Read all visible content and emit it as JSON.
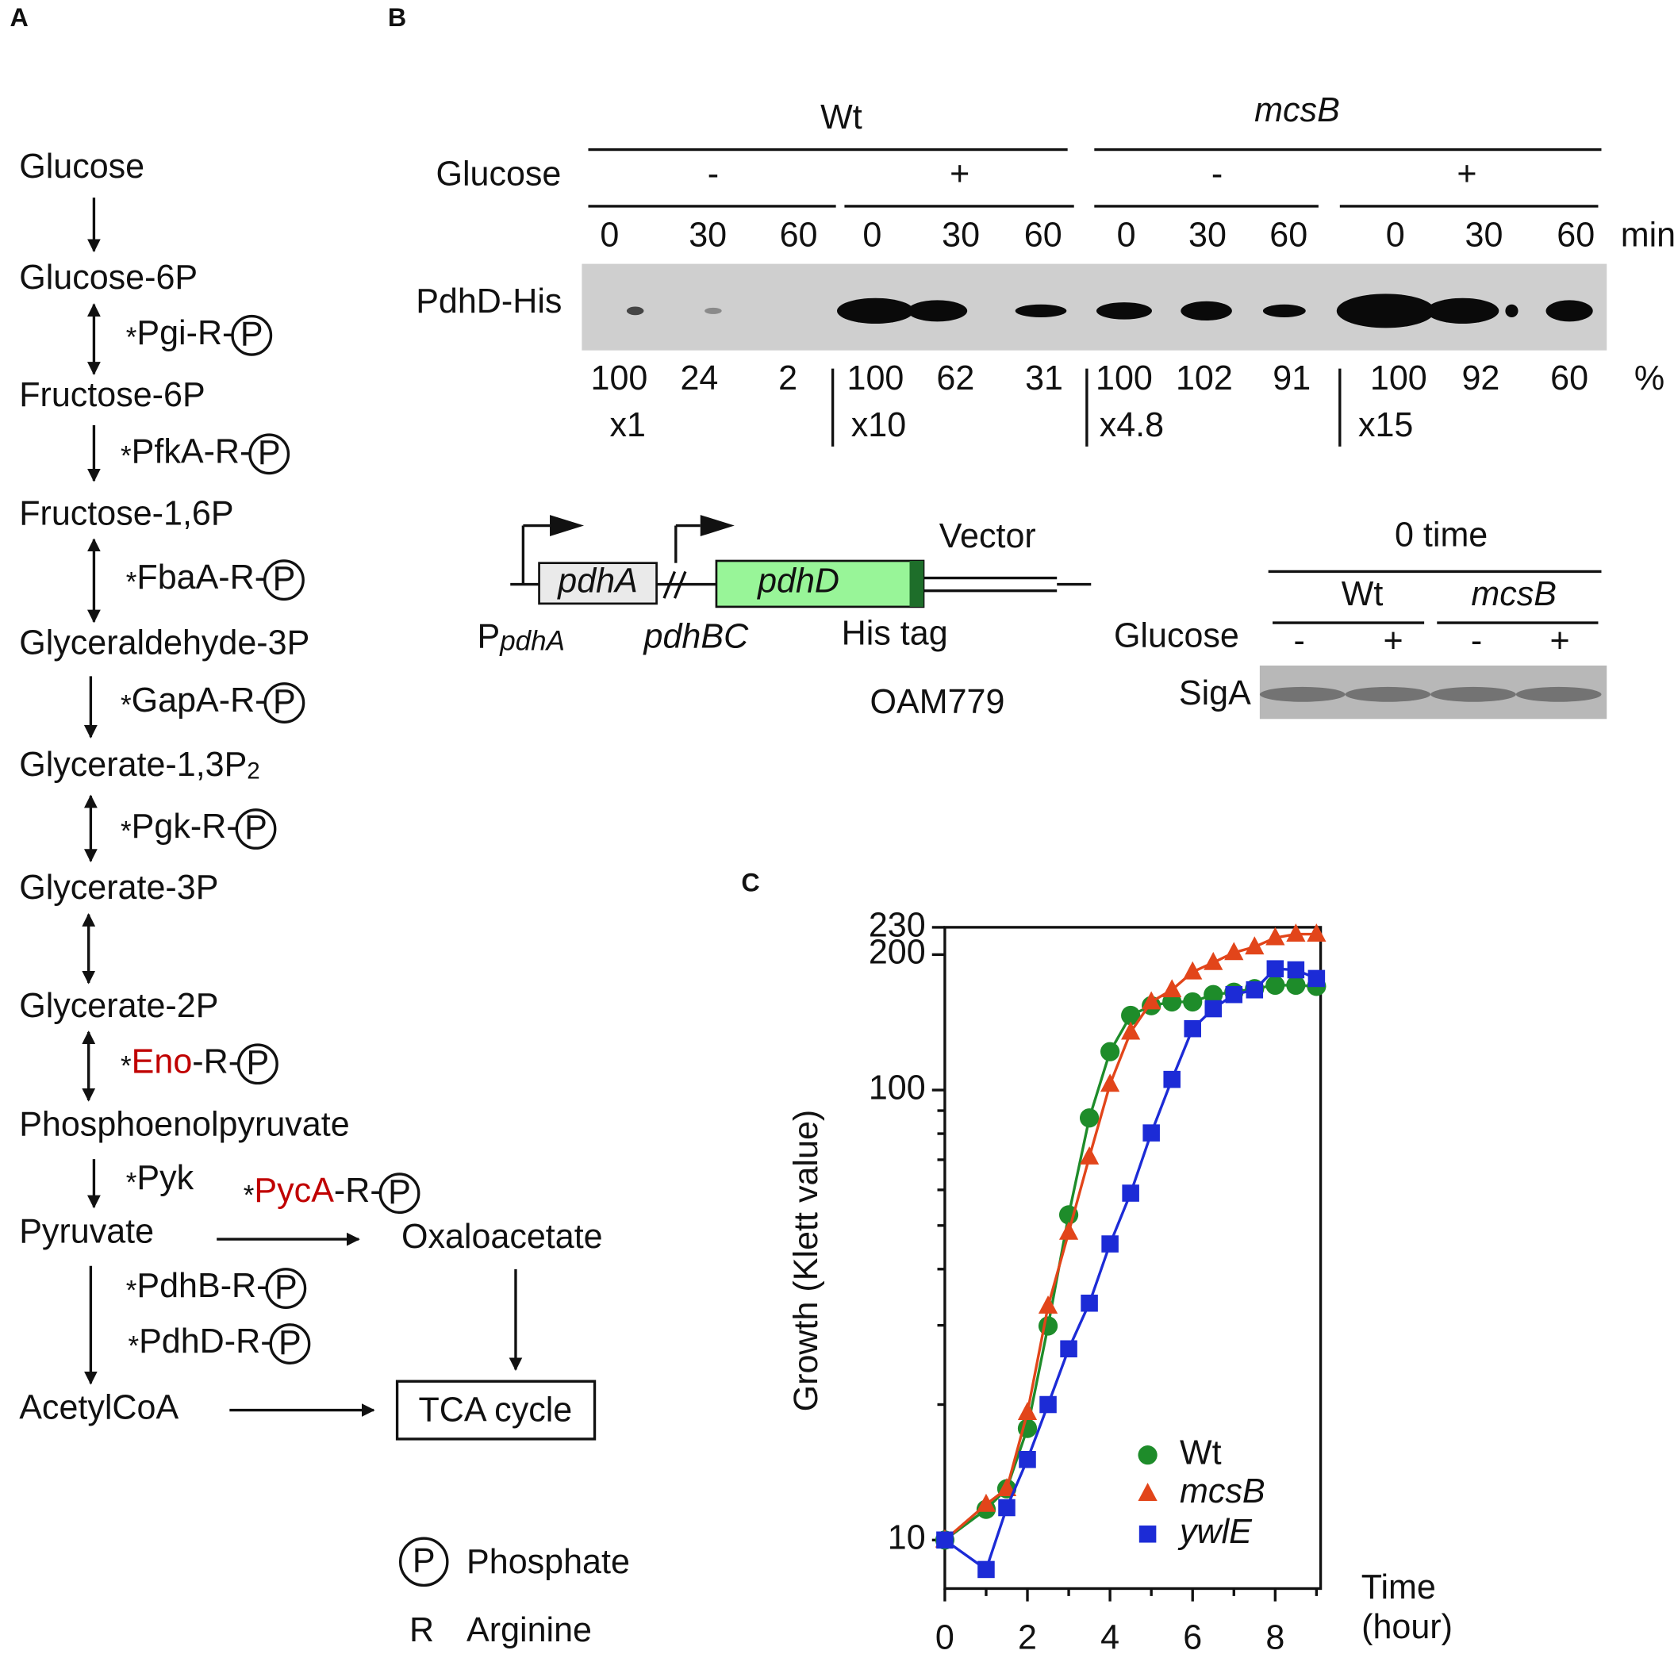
{
  "panel_labels": [
    "A",
    "B",
    "C"
  ],
  "pathway": {
    "metabolites": [
      {
        "name": "Glucose"
      },
      {
        "name": "Glucose-6P"
      },
      {
        "name": "Fructose-6P"
      },
      {
        "name": "Fructose-1,6P"
      },
      {
        "name": "Glyceraldehyde-3P"
      },
      {
        "name": "Glycerate-1,3P",
        "sub": "2"
      },
      {
        "name": "Glycerate-3P"
      },
      {
        "name": "Glycerate-2P"
      },
      {
        "name": "Phosphoenolpyruvate"
      },
      {
        "name": "Pyruvate"
      },
      {
        "name": "AcetylCoA"
      },
      {
        "name": "Oxaloacetate"
      },
      {
        "name": "TCA cycle"
      }
    ],
    "enzymes": [
      {
        "star": "*",
        "name": "Pgi",
        "link": "-R-",
        "site": "P"
      },
      {
        "star": "*",
        "name": "PfkA",
        "link": "-R-",
        "site": "P"
      },
      {
        "star": "*",
        "name": "FbaA",
        "link": "-R-",
        "site": "P"
      },
      {
        "star": "*",
        "name": "GapA",
        "link": "-R-",
        "site": "P"
      },
      {
        "star": "*",
        "name": "Pgk",
        "link": "-R-",
        "site": "P"
      },
      {
        "star": "*",
        "name": "Eno",
        "link": "-R-",
        "site": "P",
        "color": "#c00000"
      },
      {
        "star": "*",
        "name": "Pyk"
      },
      {
        "star": "*",
        "name": "PycA",
        "link": "-R-",
        "site": "P",
        "color": "#c00000"
      },
      {
        "star": "*",
        "name": "PdhB",
        "link": "-R-",
        "site": "P"
      },
      {
        "star": "*",
        "name": "PdhD",
        "link": "-R-",
        "site": "P"
      }
    ],
    "legend": [
      {
        "symbol": "P",
        "text": "Phosphate"
      },
      {
        "symbol": "R",
        "text": "Arginine"
      }
    ]
  },
  "blot": {
    "strains": [
      "Wt",
      "mcsB"
    ],
    "glucose_label": "Glucose",
    "conditions": [
      "-",
      "+",
      "-",
      "+"
    ],
    "times": [
      0,
      30,
      60,
      0,
      30,
      60,
      0,
      30,
      60,
      0,
      30,
      60
    ],
    "time_unit": "min",
    "protein": "PdhD-His",
    "percent": [
      100,
      24,
      2,
      100,
      62,
      31,
      100,
      102,
      91,
      100,
      92,
      60
    ],
    "percent_unit": "%",
    "exposure": [
      "x1",
      "x10",
      "x4.8",
      "x15"
    ]
  },
  "construct": {
    "gene1": "pdhA",
    "gene2": "pdhD",
    "vector": "Vector",
    "promoter": "P",
    "promoter_sub": "pdhA",
    "intervening": "pdhBC",
    "tag": "His tag",
    "strain": "OAM779"
  },
  "loading_control": {
    "title": "0 time",
    "strains": [
      "Wt",
      "mcsB"
    ],
    "glucose_label": "Glucose",
    "conditions": [
      "-",
      "+",
      "-",
      "+"
    ],
    "protein": "SigA"
  },
  "chart_data": {
    "type": "line",
    "ylabel": "Growth (Klett value)",
    "xlabel_lines": [
      "Time",
      "(hour)"
    ],
    "x": [
      0,
      1,
      1.5,
      2,
      2.5,
      3,
      3.5,
      4,
      4.5,
      5,
      5.5,
      6,
      6.5,
      7,
      7.5,
      8,
      8.5,
      9
    ],
    "series": [
      {
        "name": "Wt",
        "color": "#1e8c2a",
        "marker": "circle",
        "italic": false,
        "values": [
          10,
          11.7,
          13.0,
          17.7,
          29.9,
          52.8,
          86.7,
          121.7,
          146.5,
          154,
          157,
          157,
          163,
          165,
          168,
          171,
          171,
          170
        ]
      },
      {
        "name": "mcsB",
        "color": "#e2451a",
        "marker": "triangle",
        "italic": true,
        "values": [
          10,
          12.0,
          13.0,
          19.2,
          33.1,
          48.3,
          71.0,
          103,
          134.5,
          157,
          167,
          183,
          192,
          202,
          208,
          218,
          222,
          222
        ]
      },
      {
        "name": "ywlE",
        "color": "#1c2bd6",
        "marker": "square",
        "italic": true,
        "values": [
          10,
          8.6,
          11.8,
          15.1,
          20.0,
          26.6,
          33.6,
          45.5,
          59.0,
          80.3,
          105.6,
          136.9,
          151.6,
          163,
          167,
          186,
          185,
          177
        ]
      }
    ],
    "log_y": true,
    "xlim": [
      0,
      9.1
    ],
    "ylim": [
      7.8,
      230
    ],
    "xticks": [
      0,
      2,
      4,
      6,
      8
    ],
    "xminorticks": [
      1,
      3,
      5,
      7,
      9
    ],
    "yticks": [
      10,
      100,
      200,
      230
    ],
    "yminorticks": [
      20,
      30,
      40,
      50,
      60,
      70,
      80,
      90
    ],
    "legend": "lower right"
  }
}
